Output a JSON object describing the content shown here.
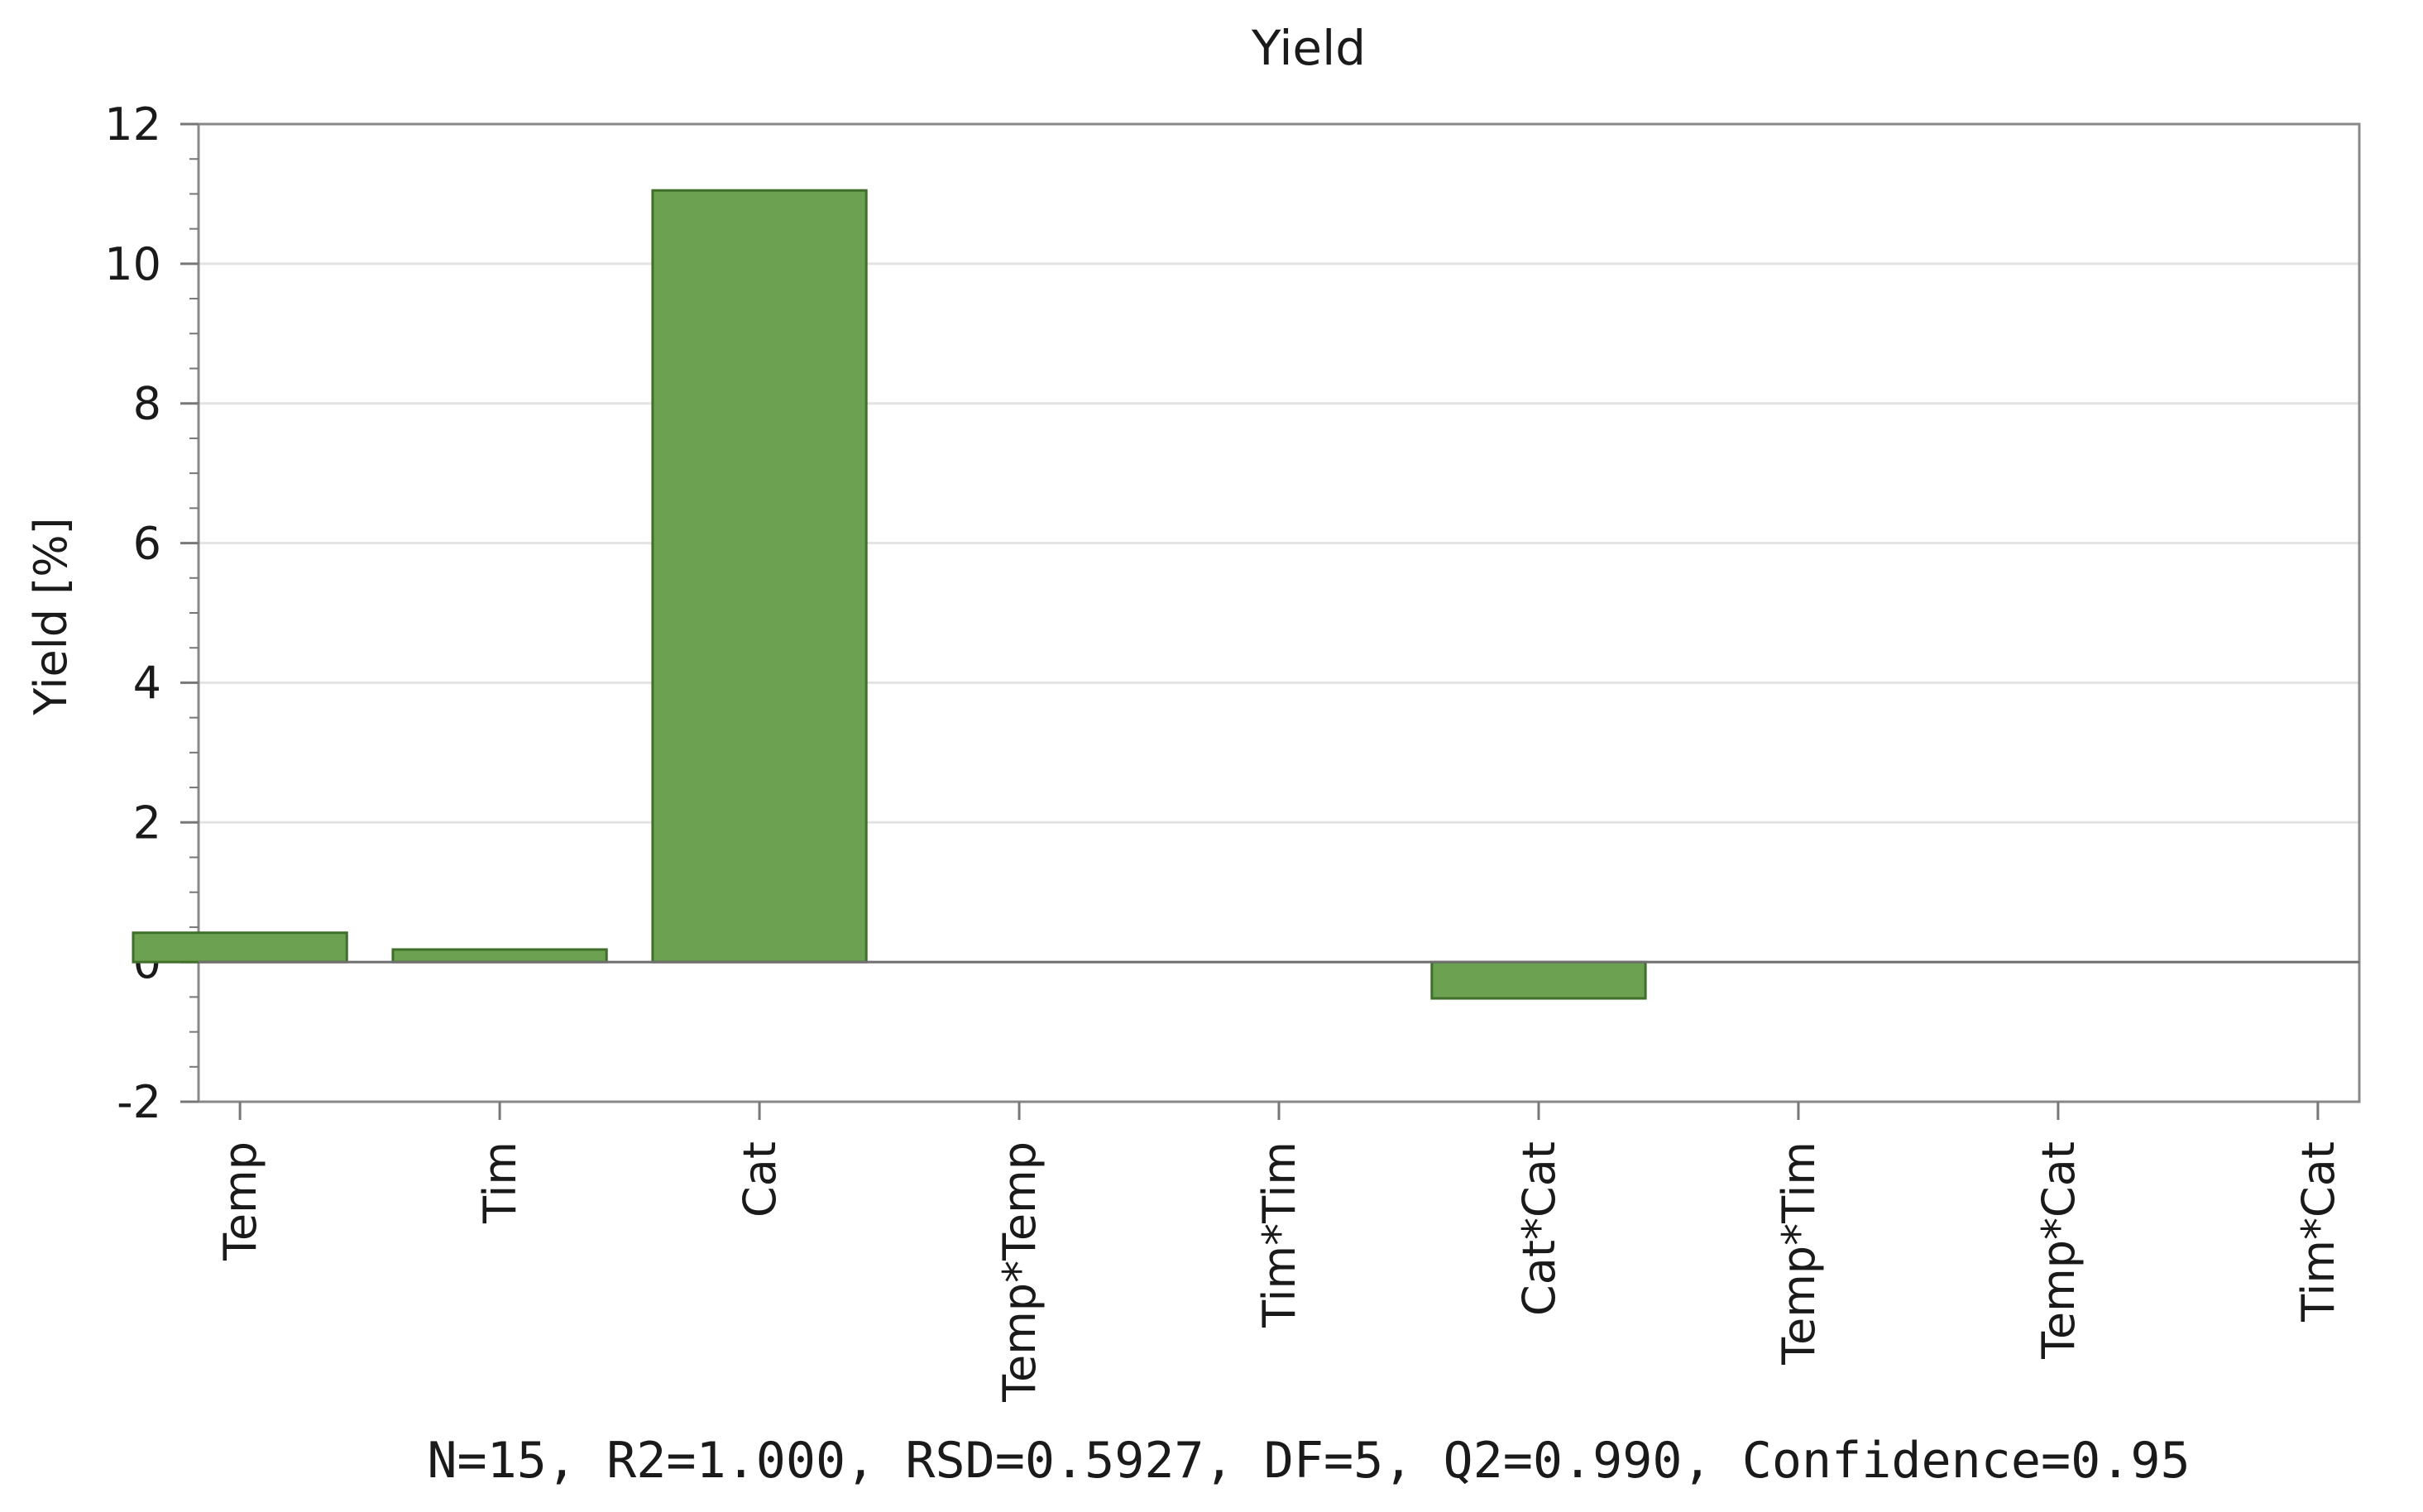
{
  "chart_data": {
    "type": "bar",
    "title": "Yield",
    "xlabel": "",
    "ylabel": "Yield [%]",
    "ylim": [
      -2,
      12
    ],
    "yticks": [
      -2,
      0,
      2,
      4,
      6,
      8,
      10,
      12
    ],
    "categories": [
      "Temp",
      "Tim",
      "Cat",
      "Temp*Temp",
      "Tim*Tim",
      "Cat*Cat",
      "Temp*Tim",
      "Temp*Cat",
      "Tim*Cat"
    ],
    "values": [
      0.42,
      0.18,
      11.05,
      0,
      0,
      -0.52,
      0,
      0,
      0
    ],
    "grid": true,
    "legend": "none",
    "bar_color": "#6ca152",
    "bar_edge_color": "#3f6f2a",
    "footer": "N=15, R2=1.000, RSD=0.5927, DF=5, Q2=0.990, Confidence=0.95"
  }
}
